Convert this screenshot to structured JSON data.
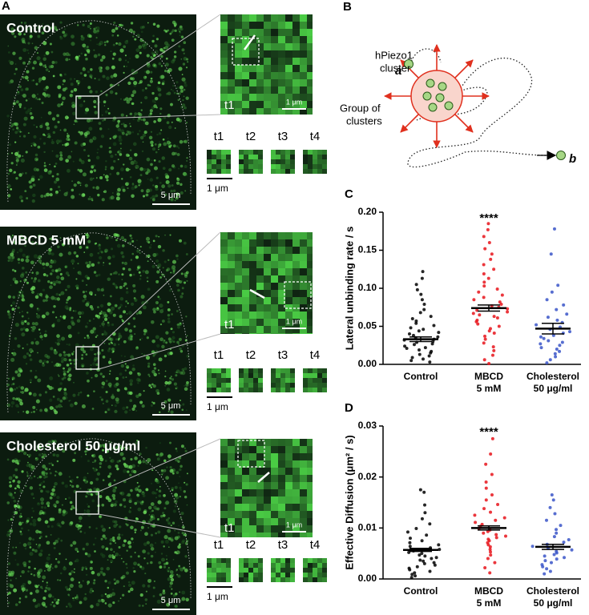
{
  "panel_a": {
    "label": "A",
    "conditions": [
      {
        "name": "Control",
        "scale_bar": "5 μm",
        "inset_time": "t1",
        "inset_scale": "1 μm",
        "timepoints": [
          "t1",
          "t2",
          "t3",
          "t4"
        ],
        "tile_scale": "1 μm"
      },
      {
        "name": "MBCD 5 mM",
        "scale_bar": "5 μm",
        "inset_time": "t1",
        "inset_scale": "1 μm",
        "timepoints": [
          "t1",
          "t2",
          "t3",
          "t4"
        ],
        "tile_scale": "1 μm"
      },
      {
        "name": "Cholesterol 50 μg/ml",
        "scale_bar": "5 μm",
        "inset_time": "t1",
        "inset_scale": "1 μm",
        "timepoints": [
          "t1",
          "t2",
          "t3",
          "t4"
        ],
        "tile_scale": "1 μm"
      }
    ]
  },
  "panel_b": {
    "label": "B",
    "cluster_label": [
      "hPiezo1",
      "cluster"
    ],
    "start_label": "a",
    "group_label": [
      "Group of",
      "clusters"
    ],
    "end_label": "b"
  },
  "chart_data": [
    {
      "type": "strip",
      "panel_label": "C",
      "ylabel": "Lateral unbinding rate / s",
      "categories": [
        [
          "Control"
        ],
        [
          "MBCD",
          "5 mM"
        ],
        [
          "Cholesterol",
          "50 μg/ml"
        ]
      ],
      "groups": [
        {
          "color": "#000000",
          "mean": 0.033,
          "error": 0.003,
          "values": [
            0.122,
            0.113,
            0.105,
            0.098,
            0.092,
            0.085,
            0.079,
            0.072,
            0.068,
            0.063,
            0.06,
            0.057,
            0.054,
            0.051,
            0.048,
            0.046,
            0.044,
            0.042,
            0.04,
            0.038,
            0.036,
            0.035,
            0.033,
            0.032,
            0.03,
            0.029,
            0.027,
            0.026,
            0.024,
            0.022,
            0.021,
            0.019,
            0.017,
            0.015,
            0.013,
            0.011,
            0.009,
            0.007,
            0.005,
            0.003
          ]
        },
        {
          "color": "#e8141b",
          "mean": 0.074,
          "error": 0.004,
          "annotation": "****",
          "values": [
            0.185,
            0.177,
            0.168,
            0.16,
            0.152,
            0.145,
            0.138,
            0.131,
            0.125,
            0.119,
            0.113,
            0.108,
            0.103,
            0.099,
            0.095,
            0.091,
            0.088,
            0.085,
            0.082,
            0.079,
            0.077,
            0.075,
            0.073,
            0.071,
            0.069,
            0.067,
            0.065,
            0.063,
            0.061,
            0.058,
            0.056,
            0.053,
            0.05,
            0.047,
            0.044,
            0.041,
            0.037,
            0.033,
            0.028,
            0.023,
            0.018,
            0.012,
            0.006,
            0.001
          ]
        },
        {
          "color": "#3a55c8",
          "mean": 0.047,
          "error": 0.007,
          "values": [
            0.178,
            0.145,
            0.104,
            0.095,
            0.085,
            0.078,
            0.072,
            0.066,
            0.062,
            0.058,
            0.055,
            0.052,
            0.049,
            0.046,
            0.043,
            0.041,
            0.038,
            0.036,
            0.034,
            0.031,
            0.029,
            0.027,
            0.025,
            0.022,
            0.02,
            0.017,
            0.014,
            0.01,
            0.006,
            0.002
          ]
        }
      ],
      "ylim": [
        0,
        0.2
      ],
      "yticks": [
        {
          "value": 0,
          "label": "0.00"
        },
        {
          "value": 0.05,
          "label": "0.05"
        },
        {
          "value": 0.1,
          "label": "0.10"
        },
        {
          "value": 0.15,
          "label": "0.15"
        },
        {
          "value": 0.2,
          "label": "0.20"
        }
      ]
    },
    {
      "type": "strip",
      "panel_label": "D",
      "ylabel": "Effective Diffusion (μm² / s)",
      "categories": [
        [
          "Control"
        ],
        [
          "MBCD",
          "5 mM"
        ],
        [
          "Cholesterol",
          "50 μg/ml"
        ]
      ],
      "groups": [
        {
          "color": "#000000",
          "mean": 0.0057,
          "error": 0.0003,
          "values": [
            0.0175,
            0.017,
            0.0145,
            0.013,
            0.0118,
            0.0108,
            0.0099,
            0.0092,
            0.0086,
            0.008,
            0.0075,
            0.0071,
            0.0067,
            0.0064,
            0.0061,
            0.0058,
            0.0055,
            0.0052,
            0.005,
            0.0047,
            0.0045,
            0.0042,
            0.004,
            0.0037,
            0.0035,
            0.0032,
            0.003,
            0.0027,
            0.0024,
            0.0021,
            0.0018,
            0.0015,
            0.0012,
            0.0009,
            0.0006,
            0.0003
          ]
        },
        {
          "color": "#e8141b",
          "mean": 0.01,
          "error": 0.0004,
          "annotation": "****",
          "values": [
            0.0275,
            0.0245,
            0.0225,
            0.0205,
            0.019,
            0.0178,
            0.0165,
            0.0155,
            0.0146,
            0.0138,
            0.0131,
            0.0125,
            0.012,
            0.0115,
            0.0111,
            0.0107,
            0.0103,
            0.0099,
            0.0096,
            0.0093,
            0.009,
            0.0087,
            0.0084,
            0.0081,
            0.0078,
            0.0075,
            0.0071,
            0.0067,
            0.0063,
            0.0058,
            0.0053,
            0.0047,
            0.004,
            0.0032,
            0.0022,
            0.0012
          ]
        },
        {
          "color": "#3a55c8",
          "mean": 0.0063,
          "error": 0.0005,
          "values": [
            0.0165,
            0.0155,
            0.014,
            0.0128,
            0.0115,
            0.0105,
            0.0097,
            0.009,
            0.0083,
            0.0077,
            0.0072,
            0.0068,
            0.0064,
            0.006,
            0.0057,
            0.0054,
            0.0051,
            0.0048,
            0.0045,
            0.0042,
            0.0039,
            0.0036,
            0.0032,
            0.0028,
            0.0024,
            0.002,
            0.0015,
            0.001
          ]
        }
      ],
      "ylim": [
        0,
        0.03
      ],
      "yticks": [
        {
          "value": 0,
          "label": "0.00"
        },
        {
          "value": 0.01,
          "label": "0.01"
        },
        {
          "value": 0.02,
          "label": "0.02"
        },
        {
          "value": 0.03,
          "label": "0.03"
        }
      ]
    }
  ]
}
